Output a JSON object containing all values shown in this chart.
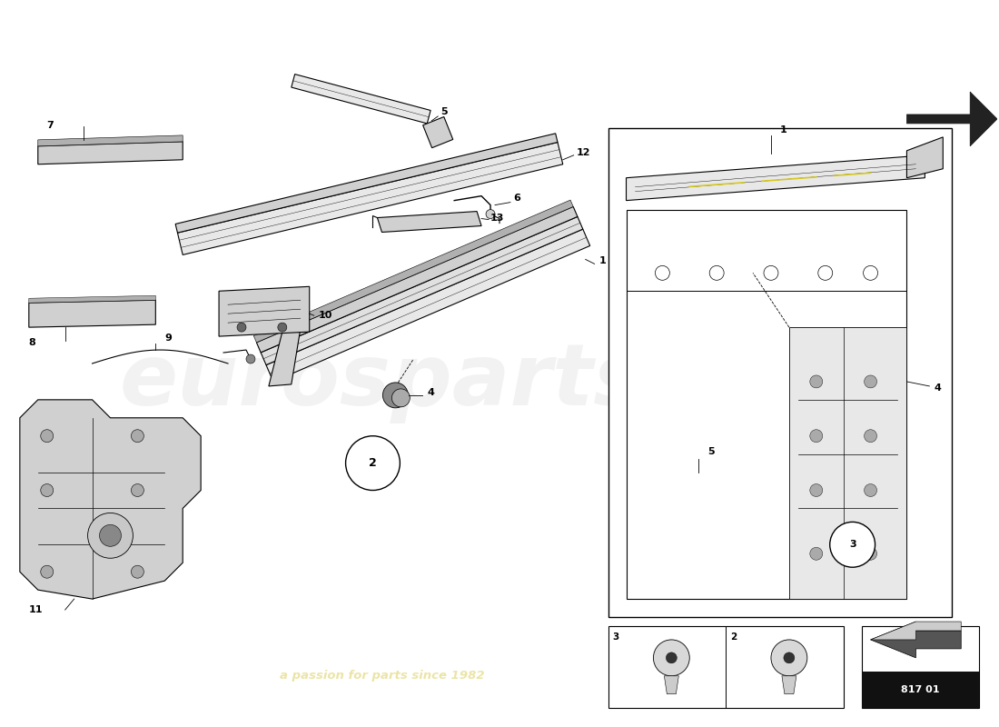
{
  "background_color": "#ffffff",
  "watermark_text": "a passion for parts since 1982",
  "watermark_color": "#c8b400",
  "watermark_alpha": 0.35,
  "page_code": "817 01",
  "line_color": "#000000",
  "fill_light": "#e8e8e8",
  "fill_mid": "#d0d0d0",
  "fill_dark": "#b0b0b0",
  "yellow_hl": "#d4c820"
}
